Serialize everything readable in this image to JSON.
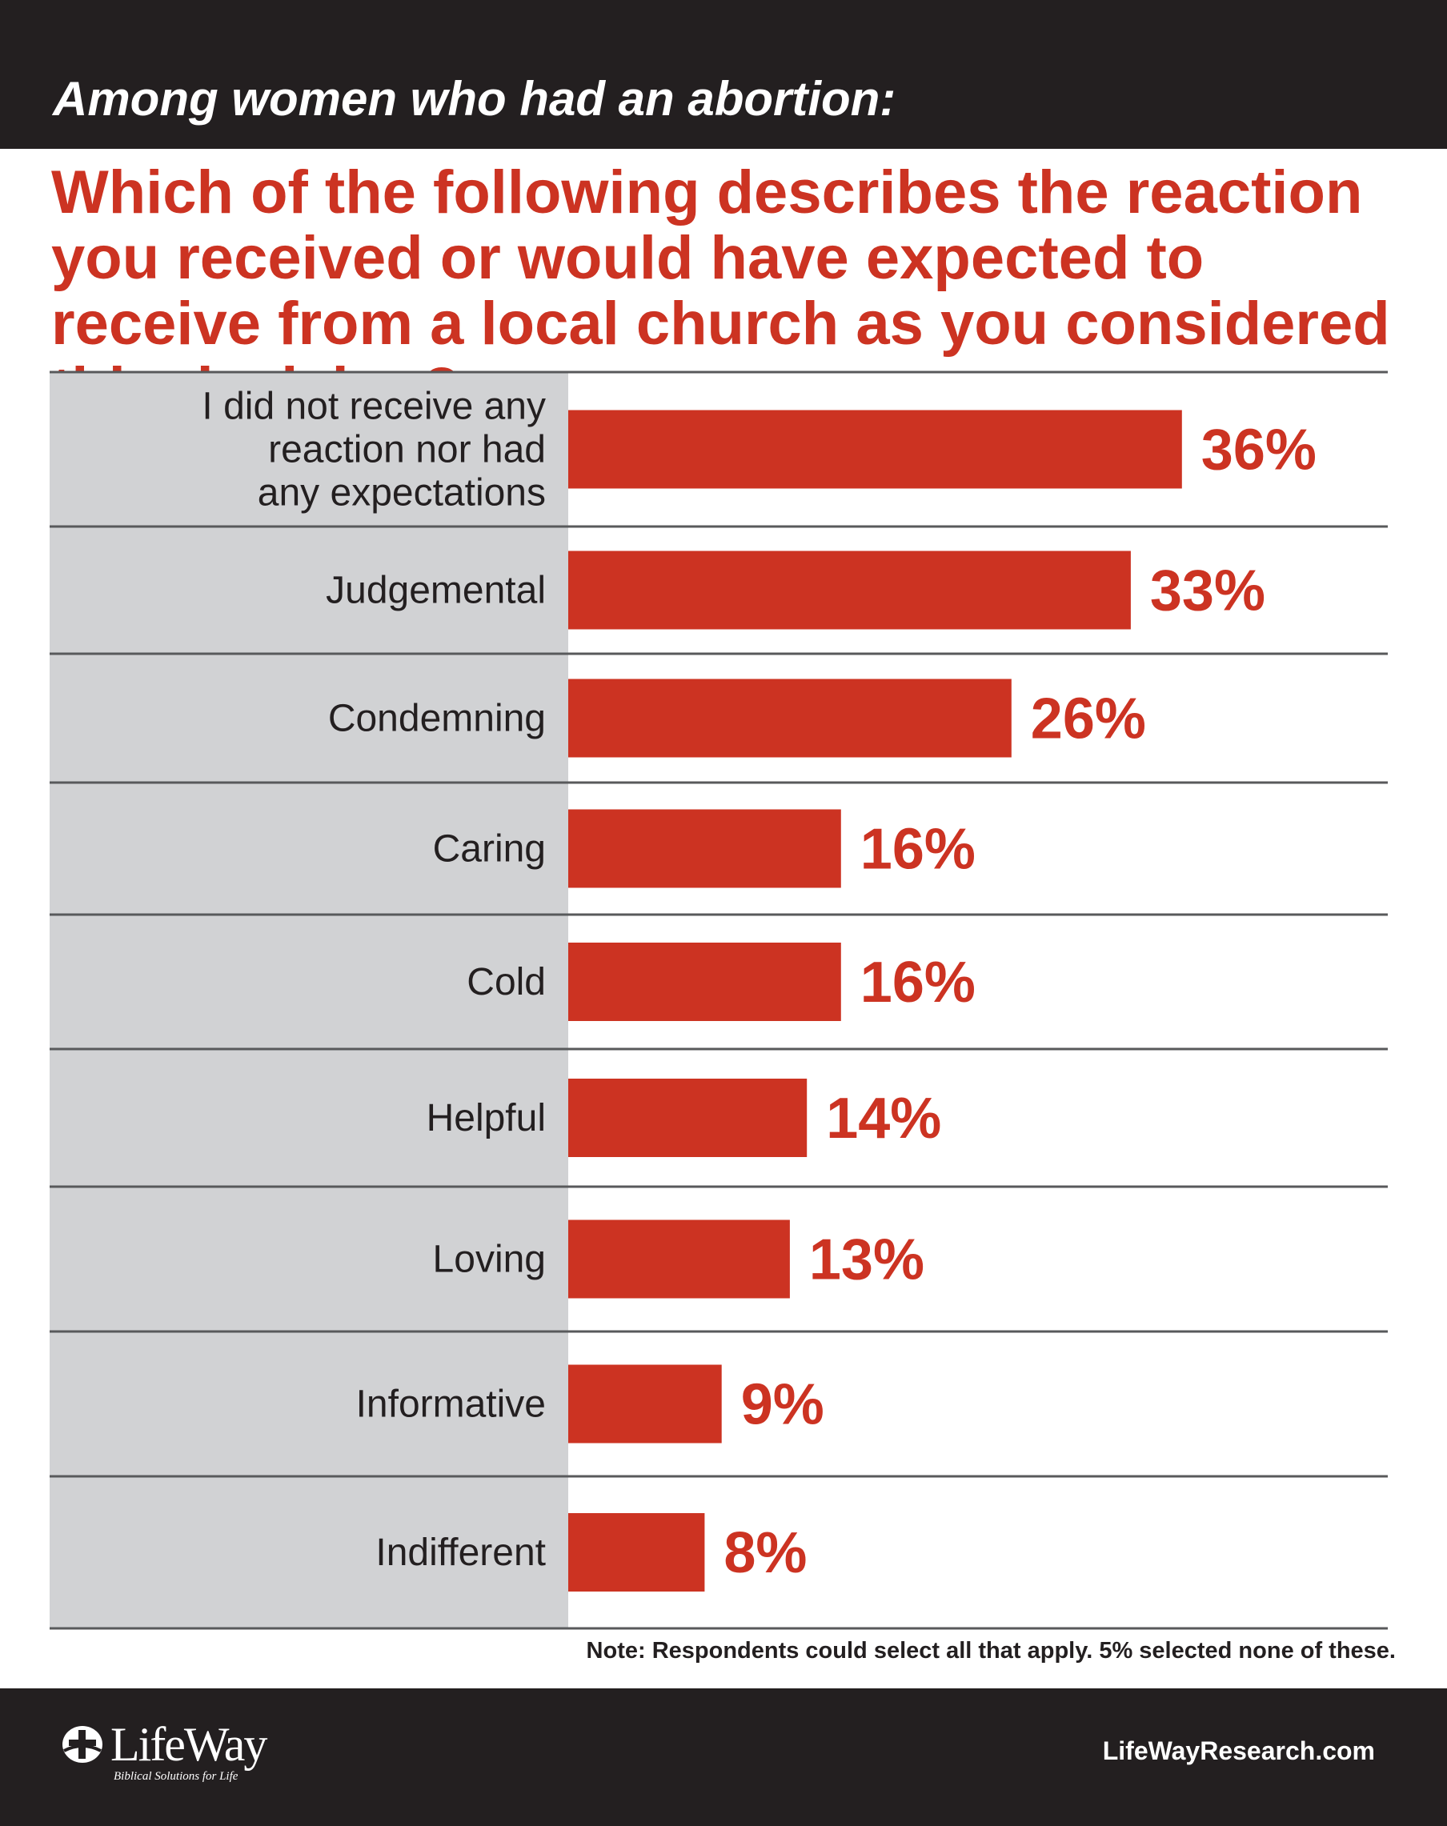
{
  "header": {
    "subtitle": "Among women who had an abortion:",
    "title": "Which of the following describes the reaction you received or would have expected to receive from a local church as you considered this decision?"
  },
  "chart_data": {
    "type": "bar",
    "orientation": "horizontal",
    "categories": [
      [
        "I did not receive any",
        "reaction nor had",
        "any expectations"
      ],
      [
        "Judgemental"
      ],
      [
        "Condemning"
      ],
      [
        "Caring"
      ],
      [
        "Cold"
      ],
      [
        "Helpful"
      ],
      [
        "Loving"
      ],
      [
        "Informative"
      ],
      [
        "Indifferent"
      ]
    ],
    "values": [
      36,
      33,
      26,
      16,
      16,
      14,
      13,
      9,
      8
    ],
    "value_labels": [
      "36%",
      "33%",
      "26%",
      "16%",
      "16%",
      "14%",
      "13%",
      "9%",
      "8%"
    ],
    "bar_color": "#cc3322",
    "label_panel_color": "#d1d2d4",
    "grid": false,
    "legend": "none"
  },
  "note": "Note: Respondents could select all that apply. 5% selected none of these.",
  "footer": {
    "logo_text": "LifeWay",
    "logo_tagline": "Biblical Solutions for Life",
    "site": "LifeWayResearch.com"
  },
  "colors": {
    "dark_band": "#231f20",
    "accent": "#cc3322"
  }
}
